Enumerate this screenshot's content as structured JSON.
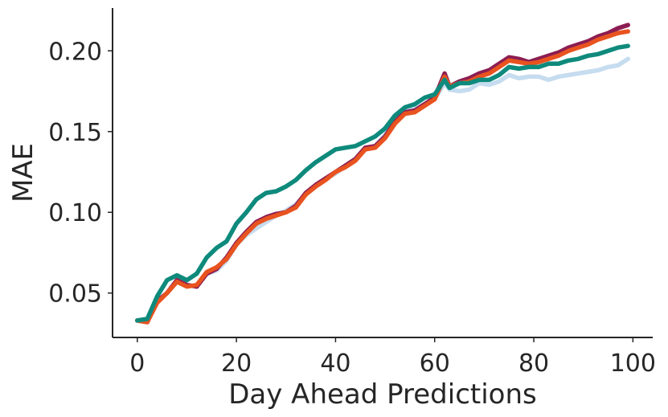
{
  "chart_data": {
    "type": "line",
    "title": "",
    "xlabel": "Day Ahead Predictions",
    "ylabel": "MAE",
    "xlim": [
      -5,
      104
    ],
    "ylim": [
      0.0225,
      0.2265
    ],
    "xticks": [
      0,
      20,
      40,
      60,
      80,
      100
    ],
    "xtick_labels": [
      "0",
      "20",
      "40",
      "60",
      "80",
      "100"
    ],
    "yticks": [
      0.05,
      0.1,
      0.15,
      0.2
    ],
    "ytick_labels": [
      "0.05",
      "0.10",
      "0.15",
      "0.20"
    ],
    "grid": false,
    "legend": "none",
    "x": [
      0,
      2,
      4,
      6,
      8,
      10,
      12,
      14,
      16,
      18,
      20,
      22,
      24,
      26,
      28,
      30,
      32,
      34,
      36,
      38,
      40,
      42,
      44,
      46,
      48,
      50,
      52,
      54,
      56,
      58,
      60,
      62,
      63,
      65,
      67,
      69,
      71,
      73,
      75,
      77,
      79,
      81,
      83,
      85,
      87,
      89,
      91,
      93,
      95,
      97,
      99
    ],
    "series": [
      {
        "color": "#c6dcef",
        "values": [
          0.033,
          0.032,
          0.045,
          0.05,
          0.057,
          0.055,
          0.054,
          0.062,
          0.064,
          0.07,
          0.08,
          0.086,
          0.09,
          0.094,
          0.098,
          0.101,
          0.105,
          0.111,
          0.116,
          0.121,
          0.124,
          0.129,
          0.133,
          0.139,
          0.141,
          0.148,
          0.156,
          0.162,
          0.164,
          0.167,
          0.17,
          0.18,
          0.176,
          0.175,
          0.176,
          0.18,
          0.179,
          0.181,
          0.185,
          0.183,
          0.184,
          0.184,
          0.182,
          0.184,
          0.185,
          0.186,
          0.187,
          0.188,
          0.19,
          0.191,
          0.195
        ]
      },
      {
        "color": "#8c1d52",
        "values": [
          0.033,
          0.032,
          0.045,
          0.05,
          0.058,
          0.055,
          0.054,
          0.062,
          0.065,
          0.072,
          0.081,
          0.088,
          0.094,
          0.097,
          0.099,
          0.1,
          0.104,
          0.112,
          0.117,
          0.121,
          0.125,
          0.129,
          0.133,
          0.14,
          0.141,
          0.147,
          0.156,
          0.162,
          0.163,
          0.167,
          0.171,
          0.186,
          0.178,
          0.181,
          0.183,
          0.186,
          0.188,
          0.192,
          0.196,
          0.195,
          0.193,
          0.195,
          0.197,
          0.199,
          0.202,
          0.204,
          0.206,
          0.209,
          0.211,
          0.214,
          0.216
        ]
      },
      {
        "color": "#e8531f",
        "values": [
          0.033,
          0.032,
          0.044,
          0.05,
          0.057,
          0.054,
          0.055,
          0.063,
          0.066,
          0.071,
          0.08,
          0.087,
          0.093,
          0.096,
          0.098,
          0.1,
          0.103,
          0.111,
          0.116,
          0.12,
          0.125,
          0.128,
          0.132,
          0.139,
          0.14,
          0.146,
          0.155,
          0.161,
          0.162,
          0.166,
          0.17,
          0.184,
          0.178,
          0.18,
          0.181,
          0.184,
          0.186,
          0.19,
          0.194,
          0.193,
          0.192,
          0.193,
          0.195,
          0.197,
          0.2,
          0.202,
          0.204,
          0.207,
          0.209,
          0.211,
          0.212
        ]
      },
      {
        "color": "#0e8a7c",
        "values": [
          0.033,
          0.034,
          0.048,
          0.058,
          0.061,
          0.058,
          0.062,
          0.072,
          0.078,
          0.082,
          0.093,
          0.1,
          0.108,
          0.112,
          0.113,
          0.116,
          0.12,
          0.126,
          0.131,
          0.135,
          0.139,
          0.14,
          0.141,
          0.144,
          0.147,
          0.152,
          0.16,
          0.165,
          0.167,
          0.171,
          0.173,
          0.182,
          0.177,
          0.18,
          0.18,
          0.182,
          0.182,
          0.185,
          0.19,
          0.189,
          0.19,
          0.19,
          0.192,
          0.192,
          0.194,
          0.195,
          0.197,
          0.198,
          0.2,
          0.202,
          0.203
        ]
      }
    ]
  }
}
